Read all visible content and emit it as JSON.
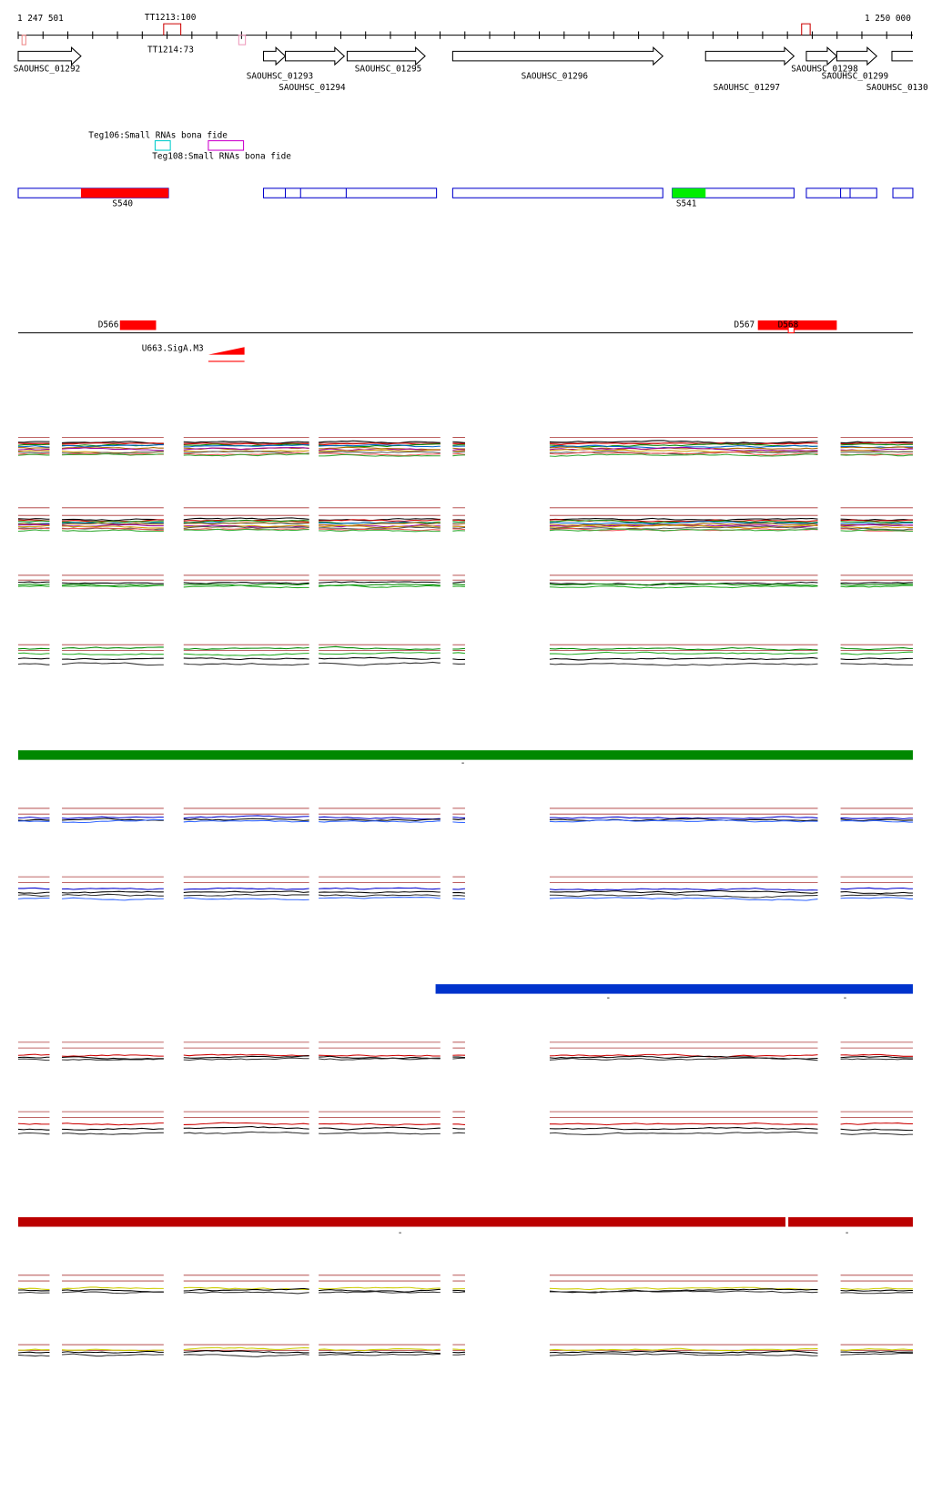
{
  "ruler": {
    "start": "1 247 501",
    "end": "1 250 000"
  },
  "terminators": [
    "TT1213:100",
    "TT1214:73"
  ],
  "genes": [
    "SAOUHSC_01292",
    "SAOUHSC_01293",
    "SAOUHSC_01294",
    "SAOUHSC_01295",
    "SAOUHSC_01296",
    "SAOUHSC_01297",
    "SAOUHSC_01298",
    "SAOUHSC_01299",
    "SAOUHSC_0130"
  ],
  "small_rnas": [
    "Teg106:Small RNAs bona fide",
    "Teg108:Small RNAs bona fide"
  ],
  "segments": [
    "S540",
    "S541"
  ],
  "features": [
    "D566",
    "D567",
    "D568",
    "U663.SigA.M3"
  ],
  "strand_marks": [
    "-",
    "-",
    "-",
    "-",
    "-"
  ]
}
